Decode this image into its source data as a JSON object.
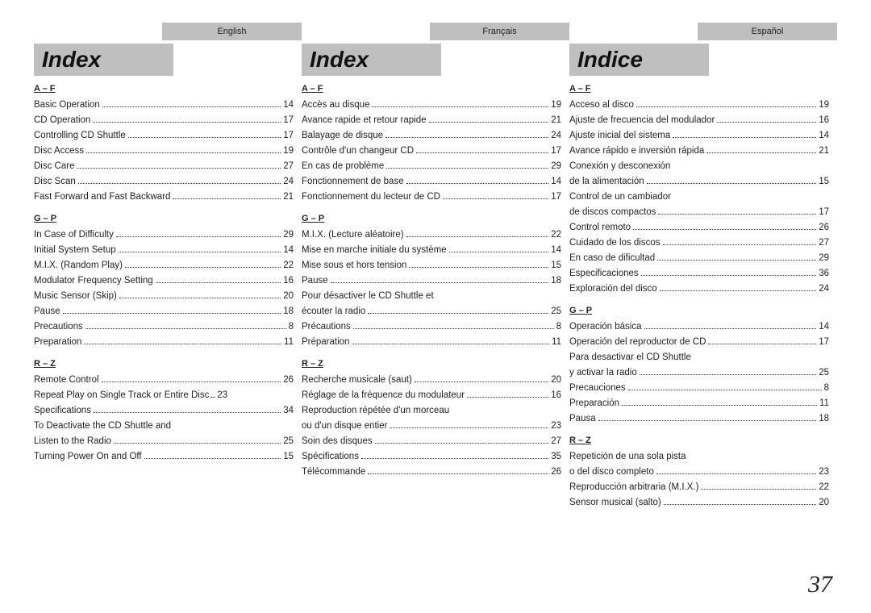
{
  "page_number": "37",
  "columns": [
    {
      "lang": "English",
      "title": "Index",
      "sections": [
        {
          "head": "A – F",
          "entries": [
            {
              "t": "Basic Operation",
              "p": "14"
            },
            {
              "t": "CD Operation",
              "p": "17"
            },
            {
              "t": "Controlling CD Shuttle",
              "p": "17"
            },
            {
              "t": "Disc Access",
              "p": "19"
            },
            {
              "t": "Disc Care",
              "p": "27"
            },
            {
              "t": "Disc Scan",
              "p": "24"
            },
            {
              "t": "Fast Forward and Fast Backward",
              "p": "21"
            }
          ]
        },
        {
          "head": "G – P",
          "entries": [
            {
              "t": "In Case of Difficulty",
              "p": "29"
            },
            {
              "t": "Initial System Setup",
              "p": "14"
            },
            {
              "t": "M.I.X. (Random Play)",
              "p": "22"
            },
            {
              "t": "Modulator Frequency Setting",
              "p": "16"
            },
            {
              "t": "Music Sensor (Skip)",
              "p": "20"
            },
            {
              "t": "Pause",
              "p": "18"
            },
            {
              "t": "Precautions",
              "p": "8"
            },
            {
              "t": "Preparation",
              "p": "11"
            }
          ]
        },
        {
          "head": "R – Z",
          "entries": [
            {
              "t": "Remote Control",
              "p": "26"
            },
            {
              "t": "Repeat Play on Single Track or Entire Disc",
              "short_dots": true,
              "p": "23"
            },
            {
              "t": "Specifications",
              "p": "34"
            },
            {
              "pre": "To Deactivate the CD Shuttle and",
              "t": "Listen to the Radio",
              "p": "25"
            },
            {
              "t": "Turning Power On and Off",
              "p": "15"
            }
          ]
        }
      ]
    },
    {
      "lang": "Français",
      "title": "Index",
      "sections": [
        {
          "head": "A – F",
          "entries": [
            {
              "t": "Accès au disque",
              "p": "19"
            },
            {
              "t": "Avance rapide et retour rapide",
              "p": "21"
            },
            {
              "t": "Balayage de disque",
              "p": "24"
            },
            {
              "t": "Contrôle d'un changeur CD",
              "p": "17"
            },
            {
              "t": "En cas de problème",
              "p": "29"
            },
            {
              "t": "Fonctionnement de base",
              "p": "14"
            },
            {
              "t": "Fonctionnement du lecteur de CD",
              "p": "17"
            }
          ]
        },
        {
          "head": "G – P",
          "entries": [
            {
              "t": "M.I.X. (Lecture aléatoire)",
              "p": "22"
            },
            {
              "t": "Mise en marche initiale du système",
              "p": "14"
            },
            {
              "t": "Mise sous et hors tension",
              "p": "15"
            },
            {
              "t": "Pause",
              "p": "18"
            },
            {
              "pre": "Pour désactiver le CD Shuttle et",
              "t": "écouter la radio",
              "p": "25"
            },
            {
              "t": "Précautions",
              "p": "8"
            },
            {
              "t": "Préparation",
              "p": "11"
            }
          ]
        },
        {
          "head": "R – Z",
          "entries": [
            {
              "t": "Recherche musicale (saut)",
              "p": "20"
            },
            {
              "t": "Réglage de la fréquence du modulateur",
              "p": "16"
            },
            {
              "pre": "Reproduction répétée d'un morceau",
              "t": "ou d'un disque entier",
              "p": "23"
            },
            {
              "t": "Soin des disques",
              "p": "27"
            },
            {
              "t": "Spécifications",
              "p": "35"
            },
            {
              "t": "Télécommande",
              "p": "26"
            }
          ]
        }
      ]
    },
    {
      "lang": "Español",
      "title": "Indice",
      "sections": [
        {
          "head": "A – F",
          "entries": [
            {
              "t": "Acceso al disco",
              "p": "19"
            },
            {
              "t": "Ajuste de frecuencia del modulador",
              "p": "16"
            },
            {
              "t": "Ajuste inicial del sistema",
              "p": "14"
            },
            {
              "t": "Avance rápido e inversión rápida",
              "p": "21"
            },
            {
              "pre": "Conexión y desconexión",
              "t": "de la alimentación",
              "p": "15"
            },
            {
              "pre": "Control de un cambiador",
              "t": "de discos compactos",
              "p": "17"
            },
            {
              "t": "Control remoto",
              "p": "26"
            },
            {
              "t": "Cuidado de los discos",
              "p": "27"
            },
            {
              "t": "En caso de dificultad",
              "p": "29"
            },
            {
              "t": "Especificaciones",
              "p": "36"
            },
            {
              "t": "Exploración del disco",
              "p": "24"
            }
          ]
        },
        {
          "head": "G – P",
          "entries": [
            {
              "t": "Operación básica",
              "p": "14"
            },
            {
              "t": "Operación del reproductor de CD",
              "p": "17"
            },
            {
              "pre": "Para desactivar el CD Shuttle",
              "t": "y activar la radio",
              "p": "25"
            },
            {
              "t": "Precauciones",
              "p": "8"
            },
            {
              "t": "Preparación",
              "p": "11"
            },
            {
              "t": "Pausa",
              "p": "18"
            }
          ]
        },
        {
          "head": "R – Z",
          "entries": [
            {
              "pre": "Repetición de una sola pista",
              "t": "o del disco completo",
              "p": "23"
            },
            {
              "t": "Reproducción arbitraria (M.I.X.)",
              "p": "22"
            },
            {
              "t": "Sensor musical (salto)",
              "p": "20"
            }
          ]
        }
      ]
    }
  ]
}
